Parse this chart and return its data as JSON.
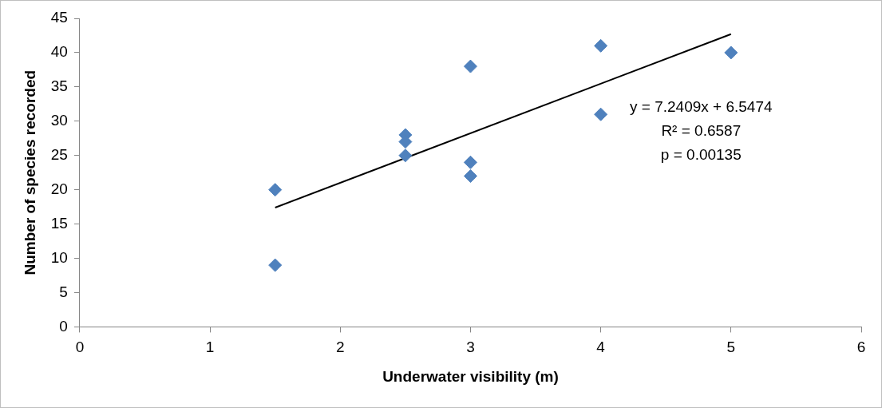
{
  "chart_data": {
    "type": "scatter",
    "xlabel": "Underwater visibility (m)",
    "ylabel": "Number of species recorded",
    "xlim": [
      0,
      6
    ],
    "xticks": [
      0,
      1,
      2,
      3,
      4,
      5,
      6
    ],
    "ylim": [
      0,
      45
    ],
    "yticks": [
      0,
      5,
      10,
      15,
      20,
      25,
      30,
      35,
      40,
      45
    ],
    "grid": false,
    "legend": false,
    "series": [
      {
        "color": "#4f81bd",
        "marker": "diamond",
        "x": [
          1.5,
          1.5,
          2.5,
          2.5,
          2.5,
          3,
          3,
          3,
          4,
          4,
          5
        ],
        "values": [
          20,
          9,
          28,
          27,
          25,
          38,
          24,
          22,
          41,
          31,
          40
        ]
      },
      {
        "type": "line",
        "color": "#000000",
        "marker": "none",
        "line_style": "solid",
        "x": [
          1.5,
          5
        ],
        "values": [
          17.4,
          42.7
        ]
      }
    ],
    "annotations": [
      "y = 7.2409x + 6.5474",
      "R² = 0.6587",
      "p = 0.00135"
    ]
  }
}
